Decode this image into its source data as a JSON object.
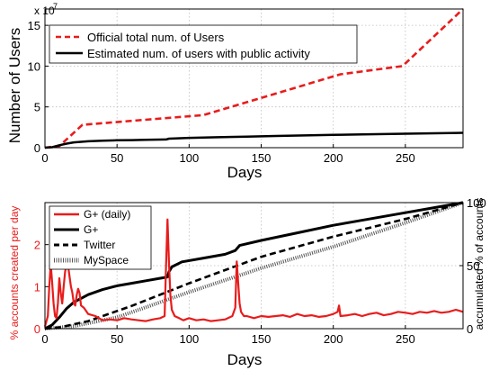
{
  "chart_data": [
    {
      "type": "line",
      "xlabel": "Days",
      "ylabel": "Number of Users",
      "y_multiplier": "x 10",
      "y_multiplier_exp": "7",
      "xlim": [
        0,
        290
      ],
      "ylim": [
        0,
        17
      ],
      "xticks": [
        "0",
        "50",
        "100",
        "150",
        "200",
        "250"
      ],
      "yticks": [
        "0",
        "5",
        "10",
        "15"
      ],
      "grid": true,
      "legend_position": "top-left",
      "series": [
        {
          "name": "Official total num. of Users",
          "color": "#e81c1c",
          "style": "dashed",
          "x": [
            0,
            10,
            26,
            110,
            205,
            248,
            290
          ],
          "y": [
            0,
            0.2,
            2.8,
            4.0,
            9.0,
            10.0,
            17.0
          ]
        },
        {
          "name": "Estimated num. of users with public activity",
          "color": "#000000",
          "style": "solid",
          "x": [
            0,
            5,
            10,
            15,
            20,
            25,
            30,
            40,
            50,
            60,
            70,
            84,
            86,
            100,
            120,
            140,
            160,
            180,
            200,
            220,
            240,
            260,
            290
          ],
          "y": [
            0,
            0.05,
            0.3,
            0.5,
            0.65,
            0.72,
            0.78,
            0.85,
            0.9,
            0.93,
            0.96,
            1.0,
            1.1,
            1.2,
            1.28,
            1.36,
            1.43,
            1.5,
            1.57,
            1.63,
            1.69,
            1.74,
            1.82
          ]
        }
      ]
    },
    {
      "type": "line",
      "xlabel": "Days",
      "ylabel_left": "% accounts created per day",
      "ylabel_right": "accumulated % of accounts",
      "xlim": [
        0,
        290
      ],
      "ylim_left": [
        0,
        3
      ],
      "ylim_right": [
        0,
        100
      ],
      "xticks": [
        "0",
        "50",
        "100",
        "150",
        "200",
        "250"
      ],
      "yticks_left": [
        "0",
        "1",
        "2"
      ],
      "yticks_right": [
        "0",
        "50",
        "100"
      ],
      "grid": true,
      "legend_position": "top-left",
      "series": [
        {
          "name": "G+ (daily)",
          "axis": "left",
          "color": "#e81c1c",
          "style": "solid",
          "x": [
            0,
            2,
            3,
            4,
            5,
            6,
            7,
            8,
            9,
            10,
            11,
            12,
            13,
            14,
            15,
            16,
            17,
            18,
            19,
            20,
            21,
            22,
            23,
            24,
            25,
            27,
            30,
            35,
            40,
            45,
            50,
            55,
            60,
            65,
            70,
            75,
            80,
            83,
            84,
            85,
            86,
            87,
            88,
            90,
            93,
            96,
            100,
            105,
            110,
            115,
            120,
            125,
            130,
            132,
            133,
            134,
            135,
            136,
            137,
            138,
            140,
            145,
            150,
            155,
            160,
            165,
            170,
            175,
            180,
            185,
            190,
            195,
            200,
            203,
            204,
            205,
            210,
            215,
            220,
            225,
            230,
            235,
            240,
            245,
            250,
            255,
            260,
            265,
            270,
            275,
            280,
            285,
            290
          ],
          "y": [
            0.05,
            0.3,
            1.0,
            1.55,
            1.1,
            0.6,
            0.3,
            0.25,
            0.6,
            1.2,
            0.85,
            0.6,
            1.0,
            1.35,
            1.55,
            1.5,
            1.25,
            1.0,
            0.85,
            0.6,
            0.55,
            0.8,
            0.95,
            0.85,
            0.55,
            0.5,
            0.35,
            0.3,
            0.2,
            0.22,
            0.2,
            0.25,
            0.22,
            0.2,
            0.18,
            0.22,
            0.25,
            0.3,
            1.5,
            2.6,
            1.6,
            0.8,
            0.45,
            0.3,
            0.25,
            0.2,
            0.25,
            0.2,
            0.22,
            0.18,
            0.2,
            0.22,
            0.3,
            0.5,
            1.6,
            1.1,
            0.6,
            0.4,
            0.35,
            0.3,
            0.3,
            0.25,
            0.3,
            0.28,
            0.3,
            0.32,
            0.28,
            0.35,
            0.3,
            0.32,
            0.28,
            0.3,
            0.35,
            0.4,
            0.55,
            0.3,
            0.32,
            0.35,
            0.3,
            0.35,
            0.38,
            0.32,
            0.35,
            0.4,
            0.38,
            0.35,
            0.4,
            0.38,
            0.42,
            0.38,
            0.4,
            0.45,
            0.4
          ]
        },
        {
          "name": "G+",
          "axis": "right",
          "color": "#000000",
          "style": "solid",
          "x": [
            0,
            5,
            10,
            15,
            20,
            25,
            30,
            40,
            50,
            60,
            70,
            80,
            85,
            86,
            88,
            95,
            110,
            125,
            132,
            135,
            150,
            175,
            200,
            225,
            250,
            270,
            290
          ],
          "y": [
            0,
            3,
            9,
            16,
            21,
            24,
            27,
            31,
            34,
            36,
            38,
            40,
            41,
            45,
            49,
            53,
            56,
            59,
            62,
            66,
            70,
            76,
            82,
            87,
            92,
            96,
            100
          ]
        },
        {
          "name": "Twitter",
          "axis": "right",
          "color": "#000000",
          "style": "dashed",
          "x": [
            0,
            10,
            30,
            60,
            100,
            150,
            200,
            250,
            290
          ],
          "y": [
            0,
            1,
            6,
            18,
            36,
            57,
            73,
            87,
            100
          ]
        },
        {
          "name": "MySpace",
          "axis": "right",
          "color": "#555555",
          "style": "dotted",
          "x": [
            0,
            20,
            50,
            100,
            150,
            200,
            250,
            290
          ],
          "y": [
            0,
            2,
            9,
            29,
            48,
            65,
            84,
            100
          ]
        }
      ]
    }
  ]
}
